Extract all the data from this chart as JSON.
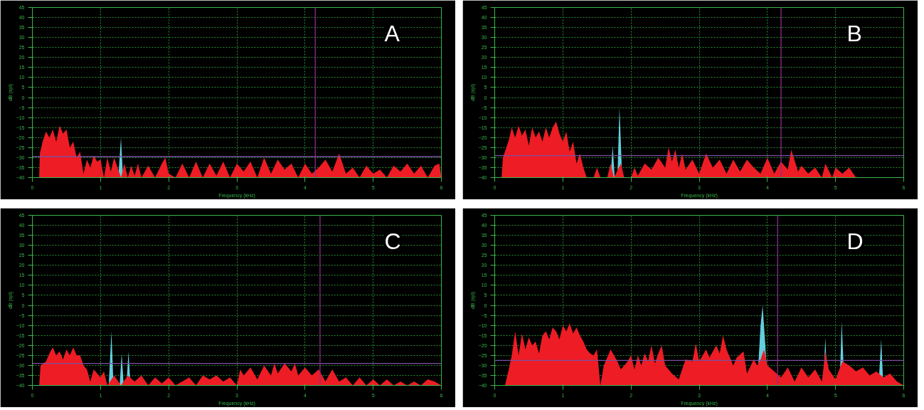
{
  "chart_data": [
    {
      "type": "area",
      "xlabel": "Frequency (kHz)",
      "ylabel": "dB (spl)",
      "annotations": [
        "A"
      ],
      "xlim": [
        0,
        6
      ],
      "xticks": [
        0,
        1,
        2,
        3,
        4,
        5,
        6
      ],
      "ylim": [
        -40,
        45
      ],
      "yticks": [
        -40,
        -35,
        -30,
        -25,
        -20,
        -15,
        -10,
        -5,
        0,
        5,
        10,
        15,
        20,
        25,
        30,
        35,
        40,
        45
      ],
      "grid": true,
      "ref_lines": [
        {
          "axis": "y",
          "value": -29.5,
          "color": "#7b4fa0"
        },
        {
          "axis": "x",
          "value": 4.15,
          "color": "#8b2d8b"
        }
      ],
      "series": [
        {
          "color": "#63cfdf",
          "x": [
            0,
            1.26,
            1.3,
            1.33,
            6
          ],
          "values": [
            -40,
            -40,
            -20,
            -40,
            -40
          ]
        },
        {
          "color": "#ee1c24",
          "x": [
            0.1,
            0.11,
            0.15,
            0.2,
            0.25,
            0.3,
            0.35,
            0.4,
            0.45,
            0.5,
            0.55,
            0.6,
            0.65,
            0.7,
            0.75,
            0.8,
            0.85,
            0.9,
            0.95,
            1.0,
            1.05,
            1.1,
            1.15,
            1.2,
            1.25,
            1.3,
            1.35,
            1.4,
            1.45,
            1.5,
            1.55,
            1.6,
            1.7,
            1.8,
            1.9,
            1.95,
            2.0,
            2.1,
            2.2,
            2.3,
            2.4,
            2.5,
            2.6,
            2.7,
            2.8,
            2.9,
            3.0,
            3.1,
            3.2,
            3.3,
            3.4,
            3.5,
            3.6,
            3.7,
            3.8,
            3.9,
            4.0,
            4.1,
            4.2,
            4.3,
            4.4,
            4.5,
            4.6,
            4.7,
            4.8,
            4.9,
            5.0,
            5.1,
            5.2,
            5.3,
            5.4,
            5.5,
            5.6,
            5.7,
            5.8,
            5.9,
            5.97,
            6.0
          ],
          "values": [
            -40,
            -28,
            -22,
            -17,
            -20,
            -16,
            -22,
            -14,
            -18,
            -16,
            -25,
            -22,
            -30,
            -27,
            -38,
            -31,
            -35,
            -29,
            -32,
            -31,
            -40,
            -30,
            -37,
            -30,
            -35,
            -40,
            -33,
            -40,
            -34,
            -39,
            -33,
            -40,
            -34,
            -40,
            -33,
            -30,
            -38,
            -40,
            -33,
            -40,
            -32,
            -40,
            -33,
            -39,
            -32,
            -40,
            -33,
            -37,
            -32,
            -40,
            -30,
            -38,
            -31,
            -36,
            -33,
            -40,
            -33,
            -38,
            -35,
            -31,
            -37,
            -28,
            -38,
            -35,
            -40,
            -34,
            -38,
            -36,
            -40,
            -34,
            -37,
            -33,
            -38,
            -34,
            -40,
            -34,
            -33,
            -40
          ]
        }
      ]
    },
    {
      "type": "area",
      "xlabel": "Frequency (kHz)",
      "ylabel": "dB (spl)",
      "annotations": [
        "B"
      ],
      "xlim": [
        0,
        6
      ],
      "xticks": [
        0,
        1,
        2,
        3,
        4,
        5,
        6
      ],
      "ylim": [
        -40,
        45
      ],
      "yticks": [
        -40,
        -35,
        -30,
        -25,
        -20,
        -15,
        -10,
        -5,
        0,
        5,
        10,
        15,
        20,
        25,
        30,
        35,
        40,
        45
      ],
      "grid": true,
      "ref_lines": [
        {
          "axis": "y",
          "value": -29,
          "color": "#7b4fa0"
        },
        {
          "axis": "x",
          "value": 4.2,
          "color": "#8b2d8b"
        }
      ],
      "series": [
        {
          "color": "#63cfdf",
          "x": [
            0,
            1.7,
            1.73,
            1.76,
            1.8,
            1.83,
            1.87,
            6
          ],
          "values": [
            -40,
            -40,
            -24,
            -40,
            -40,
            -5,
            -40,
            -40
          ]
        },
        {
          "color": "#ee1c24",
          "x": [
            0.1,
            0.12,
            0.2,
            0.25,
            0.3,
            0.35,
            0.4,
            0.45,
            0.5,
            0.55,
            0.6,
            0.65,
            0.7,
            0.75,
            0.8,
            0.85,
            0.9,
            0.95,
            1.0,
            1.05,
            1.1,
            1.15,
            1.2,
            1.25,
            1.3,
            1.35,
            1.45,
            1.5,
            1.55,
            1.65,
            1.7,
            1.75,
            1.85,
            1.9,
            2.0,
            2.05,
            2.1,
            2.2,
            2.3,
            2.4,
            2.5,
            2.55,
            2.6,
            2.65,
            2.7,
            2.75,
            2.8,
            2.9,
            3.0,
            3.1,
            3.2,
            3.3,
            3.4,
            3.5,
            3.6,
            3.7,
            3.8,
            3.9,
            4.0,
            4.1,
            4.2,
            4.3,
            4.35,
            4.45,
            4.5,
            4.6,
            4.7,
            4.8,
            4.85,
            4.95,
            5.0,
            5.1,
            5.2,
            5.3,
            6.0
          ],
          "values": [
            -40,
            -30,
            -22,
            -15,
            -20,
            -14,
            -19,
            -16,
            -24,
            -15,
            -20,
            -17,
            -22,
            -15,
            -20,
            -15,
            -12,
            -18,
            -22,
            -17,
            -27,
            -22,
            -33,
            -28,
            -35,
            -40,
            -40,
            -35,
            -40,
            -40,
            -33,
            -40,
            -33,
            -40,
            -40,
            -35,
            -39,
            -33,
            -36,
            -30,
            -35,
            -25,
            -32,
            -26,
            -35,
            -28,
            -36,
            -31,
            -38,
            -28,
            -35,
            -31,
            -38,
            -31,
            -37,
            -31,
            -35,
            -38,
            -30,
            -38,
            -32,
            -36,
            -26,
            -37,
            -34,
            -38,
            -35,
            -40,
            -33,
            -40,
            -35,
            -38,
            -35,
            -40,
            -40
          ]
        }
      ]
    },
    {
      "type": "area",
      "xlabel": "Frequency (kHz)",
      "ylabel": "dB (spl)",
      "annotations": [
        "C"
      ],
      "xlim": [
        0,
        6
      ],
      "xticks": [
        0,
        1,
        2,
        3,
        4,
        5,
        6
      ],
      "ylim": [
        -40,
        45
      ],
      "yticks": [
        -40,
        -35,
        -30,
        -25,
        -20,
        -15,
        -10,
        -5,
        0,
        5,
        10,
        15,
        20,
        25,
        30,
        35,
        40,
        45
      ],
      "grid": true,
      "ref_lines": [
        {
          "axis": "y",
          "value": -29,
          "color": "#7b4fa0"
        },
        {
          "axis": "x",
          "value": 4.22,
          "color": "#8b2d8b"
        }
      ],
      "series": [
        {
          "color": "#63cfdf",
          "x": [
            0,
            1.12,
            1.16,
            1.19,
            1.28,
            1.31,
            1.34,
            1.38,
            1.41,
            1.44,
            6
          ],
          "values": [
            -40,
            -40,
            -13,
            -40,
            -40,
            -24,
            -40,
            -40,
            -23,
            -40,
            -40
          ]
        },
        {
          "color": "#ee1c24",
          "x": [
            0.1,
            0.12,
            0.2,
            0.25,
            0.3,
            0.35,
            0.4,
            0.45,
            0.5,
            0.55,
            0.6,
            0.65,
            0.7,
            0.75,
            0.8,
            0.85,
            0.9,
            1.0,
            1.05,
            1.1,
            1.2,
            1.3,
            1.4,
            1.5,
            1.6,
            1.7,
            1.8,
            1.9,
            2.0,
            2.1,
            2.2,
            2.3,
            2.4,
            2.5,
            2.6,
            2.7,
            2.8,
            2.9,
            3.0,
            3.05,
            3.1,
            3.2,
            3.3,
            3.4,
            3.5,
            3.55,
            3.6,
            3.7,
            3.8,
            3.85,
            3.9,
            4.0,
            4.1,
            4.2,
            4.3,
            4.4,
            4.5,
            4.6,
            4.7,
            4.8,
            4.9,
            5.0,
            5.1,
            5.2,
            5.3,
            5.4,
            5.5,
            5.6,
            5.7,
            5.8,
            5.9,
            6.0
          ],
          "values": [
            -40,
            -30,
            -28,
            -24,
            -21,
            -25,
            -23,
            -27,
            -22,
            -25,
            -21,
            -25,
            -25,
            -30,
            -32,
            -38,
            -32,
            -36,
            -33,
            -40,
            -35,
            -40,
            -35,
            -38,
            -35,
            -40,
            -36,
            -39,
            -36,
            -40,
            -38,
            -36,
            -40,
            -35,
            -37,
            -35,
            -38,
            -36,
            -40,
            -32,
            -35,
            -31,
            -37,
            -30,
            -35,
            -29,
            -34,
            -29,
            -33,
            -29,
            -35,
            -31,
            -35,
            -32,
            -38,
            -32,
            -38,
            -36,
            -40,
            -36,
            -40,
            -37,
            -40,
            -37,
            -40,
            -38,
            -40,
            -38,
            -40,
            -37,
            -38,
            -40
          ]
        }
      ]
    },
    {
      "type": "area",
      "xlabel": "Frequency (kHz)",
      "ylabel": "dB (spl)",
      "annotations": [
        "D"
      ],
      "xlim": [
        0,
        6
      ],
      "xticks": [
        0,
        1,
        2,
        3,
        4,
        5,
        6
      ],
      "ylim": [
        -40,
        45
      ],
      "yticks": [
        -40,
        -35,
        -30,
        -25,
        -20,
        -15,
        -10,
        -5,
        0,
        5,
        10,
        15,
        20,
        25,
        30,
        35,
        40,
        45
      ],
      "grid": true,
      "ref_lines": [
        {
          "axis": "y",
          "value": -27.5,
          "color": "#7b4fa0"
        },
        {
          "axis": "x",
          "value": 4.15,
          "color": "#8b2d8b"
        }
      ],
      "series": [
        {
          "color": "#63cfdf",
          "x": [
            0,
            3.85,
            3.9,
            3.93,
            3.97,
            4.0,
            4.82,
            4.85,
            4.88,
            5.06,
            5.09,
            5.13,
            5.63,
            5.67,
            5.7,
            6
          ],
          "values": [
            -40,
            -40,
            -10,
            0,
            -20,
            -40,
            -40,
            -16,
            -40,
            -40,
            -8,
            -40,
            -40,
            -17,
            -40,
            -40
          ]
        },
        {
          "color": "#ee1c24",
          "x": [
            0.15,
            0.2,
            0.25,
            0.3,
            0.35,
            0.4,
            0.45,
            0.5,
            0.55,
            0.6,
            0.65,
            0.7,
            0.75,
            0.8,
            0.85,
            0.9,
            0.95,
            1.0,
            1.05,
            1.1,
            1.15,
            1.2,
            1.25,
            1.3,
            1.35,
            1.4,
            1.45,
            1.5,
            1.55,
            1.6,
            1.7,
            1.75,
            1.8,
            1.85,
            1.9,
            1.95,
            2.0,
            2.05,
            2.1,
            2.15,
            2.2,
            2.25,
            2.3,
            2.35,
            2.4,
            2.45,
            2.5,
            2.6,
            2.7,
            2.75,
            2.8,
            2.9,
            2.95,
            3.0,
            3.1,
            3.15,
            3.25,
            3.3,
            3.35,
            3.4,
            3.5,
            3.55,
            3.65,
            3.7,
            3.8,
            3.85,
            3.9,
            3.95,
            4.0,
            4.1,
            4.2,
            4.3,
            4.4,
            4.5,
            4.6,
            4.7,
            4.8,
            4.85,
            4.9,
            5.0,
            5.1,
            5.2,
            5.3,
            5.4,
            5.5,
            5.6,
            5.7,
            5.8,
            5.9,
            6.0
          ],
          "values": [
            -40,
            -33,
            -25,
            -13,
            -25,
            -14,
            -22,
            -16,
            -20,
            -18,
            -24,
            -15,
            -13,
            -17,
            -11,
            -13,
            -17,
            -10,
            -13,
            -9,
            -14,
            -11,
            -15,
            -18,
            -22,
            -24,
            -25,
            -22,
            -40,
            -30,
            -22,
            -25,
            -28,
            -32,
            -30,
            -28,
            -25,
            -32,
            -25,
            -30,
            -24,
            -28,
            -20,
            -29,
            -24,
            -20,
            -30,
            -34,
            -37,
            -32,
            -27,
            -28,
            -19,
            -28,
            -22,
            -26,
            -20,
            -24,
            -15,
            -22,
            -30,
            -26,
            -23,
            -34,
            -27,
            -30,
            -27,
            -22,
            -30,
            -33,
            -36,
            -31,
            -38,
            -31,
            -36,
            -32,
            -38,
            -23,
            -32,
            -37,
            -28,
            -30,
            -33,
            -31,
            -35,
            -33,
            -36,
            -34,
            -38,
            -40
          ]
        }
      ]
    }
  ]
}
